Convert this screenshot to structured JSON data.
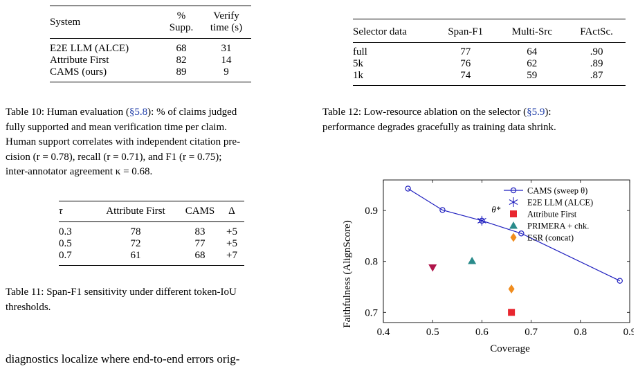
{
  "table10": {
    "headers": [
      "System",
      "%",
      "Supp.",
      "Verify",
      "time (s)"
    ],
    "rows": [
      {
        "system": "E2E LLM (ALCE)",
        "supp": "68",
        "time": "31"
      },
      {
        "system": "Attribute First",
        "supp": "82",
        "time": "14"
      },
      {
        "system": "CAMS (ours)",
        "supp": "89",
        "time": "9"
      }
    ],
    "caption_line1": "Table 10: Human evaluation (",
    "caption_ref": "§5.8",
    "caption_line1b": "): % of claims judged",
    "caption_line2": "fully supported and mean verification time per claim.",
    "caption_line3": "Human support correlates with independent citation pre-",
    "caption_line4": "cision (r = 0.78), recall (r = 0.71), and F1 (r = 0.75);",
    "caption_line5": "inter-annotator agreement κ = 0.68."
  },
  "table11": {
    "headers": [
      "τ",
      "Attribute First",
      "CAMS",
      "Δ"
    ],
    "rows": [
      {
        "tau": "0.3",
        "af": "78",
        "cams": "83",
        "delta": "+5"
      },
      {
        "tau": "0.5",
        "af": "72",
        "cams": "77",
        "delta": "+5"
      },
      {
        "tau": "0.7",
        "af": "61",
        "cams": "68",
        "delta": "+7"
      }
    ],
    "caption_line1": "Table 11: Span-F1 sensitivity under different token-IoU",
    "caption_line2": "thresholds."
  },
  "body_text": "diagnostics localize where end-to-end errors orig-",
  "table12": {
    "headers": [
      "Selector data",
      "Span-F1",
      "Multi-Src",
      "FActSc."
    ],
    "rows": [
      {
        "data": "full",
        "span": "77",
        "multi": "64",
        "fact": ".90"
      },
      {
        "data": "5k",
        "span": "76",
        "multi": "62",
        "fact": ".89"
      },
      {
        "data": "1k",
        "span": "74",
        "multi": "59",
        "fact": ".87"
      }
    ],
    "caption_line1a": "Table 12: Low-resource ablation on the selector (",
    "caption_ref": "§5.9",
    "caption_line1b": "):",
    "caption_line2": "performance degrades gracefully as training data shrink."
  },
  "chart_data": {
    "type": "scatter",
    "xlabel": "Coverage",
    "ylabel": "Faithfulness (AlignScore)",
    "xlim": [
      0.4,
      0.9
    ],
    "ylim": [
      0.68,
      0.96
    ],
    "xticks": [
      "0.4",
      "0.5",
      "0.6",
      "0.7",
      "0.8",
      "0.9"
    ],
    "yticks": [
      "0.7",
      "0.8",
      "0.9"
    ],
    "legend_position": "top-right",
    "annotation": "θ*",
    "series": [
      {
        "name": "CAMS (sweep θ)",
        "marker": "circle",
        "color": "#1f1fbf",
        "line": true,
        "x": [
          0.45,
          0.52,
          0.6,
          0.68,
          0.88
        ],
        "y": [
          0.943,
          0.901,
          0.88,
          0.855,
          0.762
        ]
      },
      {
        "name": "E2E LLM (ALCE)",
        "marker": "star",
        "color": "#1f1fbf",
        "line": false,
        "x": [
          0.6
        ],
        "y": [
          0.88
        ]
      },
      {
        "name": "Attribute First",
        "marker": "square",
        "color": "#e8262f",
        "line": false,
        "x": [
          0.66
        ],
        "y": [
          0.7
        ]
      },
      {
        "name": "PRIMERA + chk.",
        "marker": "triangle",
        "color": "#2a8b8b",
        "line": false,
        "x": [
          0.58
        ],
        "y": [
          0.801
        ]
      },
      {
        "name": "ESR (concat)",
        "marker": "diamond",
        "color": "#f08c1e",
        "line": false,
        "x": [
          0.66
        ],
        "y": [
          0.746
        ]
      },
      {
        "name": "",
        "marker": "triangle-down",
        "color": "#b0154a",
        "line": false,
        "x": [
          0.5
        ],
        "y": [
          0.788
        ]
      }
    ]
  }
}
